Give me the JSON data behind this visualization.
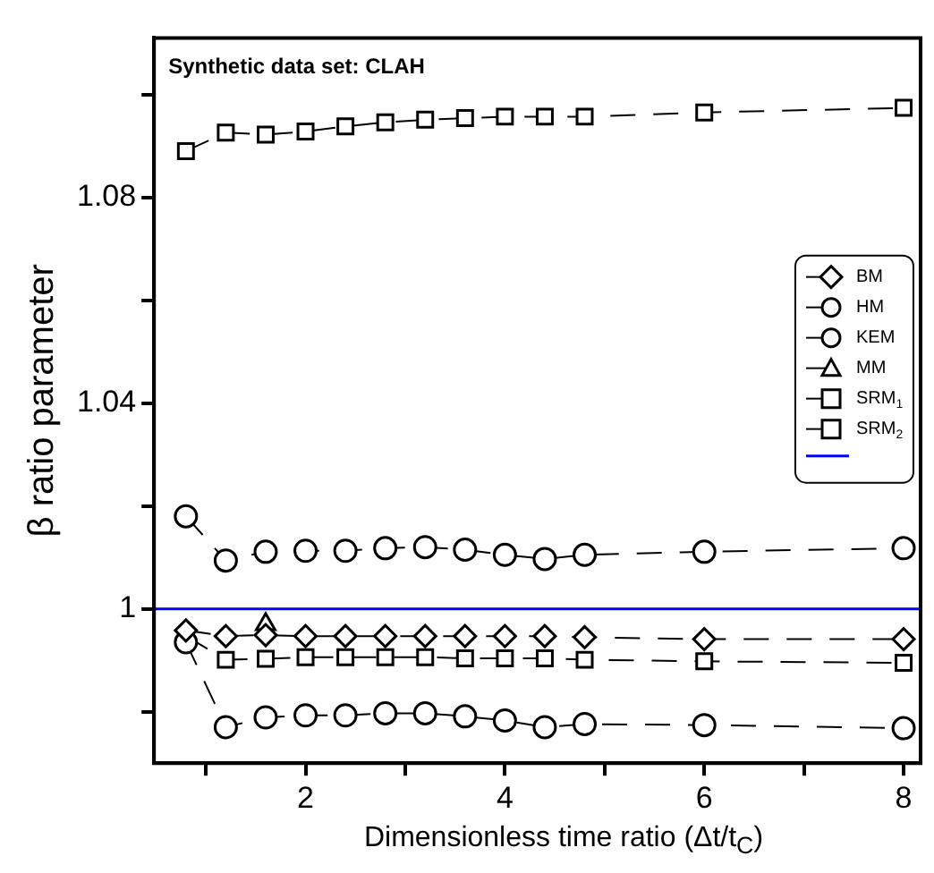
{
  "chart_data": {
    "type": "line",
    "title": "Synthetic data set: CLAH",
    "xlabel": "Dimensionless time ratio (Δt/t$_{C}$)",
    "ylabel": "β ratio parameter",
    "x": [
      0.8,
      1.2,
      1.6,
      2,
      2.4,
      2.8,
      3.2,
      3.6,
      4,
      4.4,
      4.8,
      6,
      8
    ],
    "series": [
      {
        "name": "BM",
        "color": "#000000",
        "marker": "diamond",
        "values": [
          0.9958,
          0.9947,
          0.9949,
          0.9947,
          0.9947,
          0.9947,
          0.9947,
          0.9947,
          0.9947,
          0.9947,
          0.9945,
          0.9941,
          0.9941
        ]
      },
      {
        "name": "HM",
        "color": "#000000",
        "marker": "circle",
        "values": [
          0.9935,
          0.977,
          0.9789,
          0.9793,
          0.9793,
          0.9797,
          0.9797,
          0.9791,
          0.9783,
          0.977,
          0.9776,
          0.9774,
          0.9768
        ]
      },
      {
        "name": "KEM",
        "color": "#000000",
        "marker": "circle",
        "values": [
          1.018,
          1.0094,
          1.0111,
          1.0113,
          1.0113,
          1.0118,
          1.012,
          1.0115,
          1.0105,
          1.0097,
          1.0105,
          1.0111,
          1.0118
        ]
      },
      {
        "name": "MM",
        "color": "#000000",
        "marker": "triangle",
        "values": [
          null,
          null,
          0.997,
          null,
          null,
          null,
          null,
          null,
          null,
          null,
          null,
          null,
          null
        ]
      },
      {
        "name": "SRM$_{1}$",
        "color": "#000000",
        "marker": "square",
        "values": [
          1.089,
          1.0926,
          1.0922,
          1.0928,
          1.0938,
          1.0946,
          1.0951,
          1.0954,
          1.0957,
          1.0957,
          1.0957,
          1.0965,
          1.0974
        ]
      },
      {
        "name": "SRM$_{2}$",
        "color": "#000000",
        "marker": "square",
        "values": [
          0.9947,
          0.9901,
          0.9903,
          0.9906,
          0.9906,
          0.9906,
          0.9906,
          0.9904,
          0.9904,
          0.9904,
          0.9901,
          0.9898,
          0.9895
        ]
      }
    ],
    "ref_lines": [
      {
        "axis": "y",
        "value": 1,
        "color": "#0000ff"
      }
    ],
    "line_style": "dashed",
    "legend": "right",
    "grid": false,
    "xlim": [
      0.48,
      8.17
    ],
    "xticks": [
      {
        "value": 1,
        "label": null
      },
      2,
      {
        "value": 3,
        "label": null
      },
      4,
      {
        "value": 5,
        "label": null
      },
      6,
      {
        "value": 7,
        "label": null
      },
      8
    ],
    "ylim": [
      0.97,
      1.111
    ],
    "yticks": [
      {
        "value": 0.98,
        "label": null
      },
      1,
      {
        "value": 1.02,
        "label": null
      },
      1.04,
      {
        "value": 1.06,
        "label": null
      },
      1.08,
      {
        "value": 1.1,
        "label": null
      }
    ]
  }
}
